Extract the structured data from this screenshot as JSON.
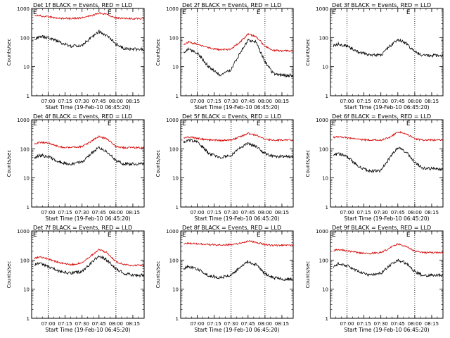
{
  "figure": {
    "background": "#ffffff",
    "event_color": "#000000",
    "lld_color": "#d40000",
    "ylabel": "Counts/sec",
    "xlabel": "Start Time (19-Feb-10 06:45:20)",
    "e_marker": "E",
    "y_ticks": [
      "1",
      "10",
      "100",
      "1000"
    ],
    "x_ticks": [
      "07:00",
      "07:15",
      "07:30",
      "07:45",
      "08:00",
      "08:15"
    ]
  },
  "chart_data": [
    {
      "type": "line",
      "title": "Det 1f BLACK = Events, RED = LLD",
      "yscale": "log",
      "ylim": [
        1,
        1000
      ],
      "xlim": [
        "06:45:20",
        "08:25"
      ],
      "lld_shown": true,
      "vlines": [
        "07:00",
        "08:00"
      ],
      "series": [
        {
          "name": "Events",
          "x": [
            "06:45",
            "06:52",
            "07:00",
            "07:10",
            "07:20",
            "07:30",
            "07:38",
            "07:45",
            "07:52",
            "08:00",
            "08:07",
            "08:15",
            "08:22"
          ],
          "values": [
            80,
            110,
            100,
            70,
            50,
            55,
            100,
            160,
            120,
            60,
            42,
            40,
            40
          ]
        },
        {
          "name": "LLD",
          "x": [
            "06:45",
            "06:52",
            "07:00",
            "07:10",
            "07:20",
            "07:30",
            "07:38",
            "07:45",
            "07:52",
            "08:00",
            "08:07",
            "08:15",
            "08:22"
          ],
          "values": [
            600,
            560,
            520,
            460,
            450,
            470,
            560,
            700,
            620,
            480,
            450,
            450,
            450
          ]
        }
      ]
    },
    {
      "type": "line",
      "title": "Det 2f BLACK = Events, RED = LLD",
      "yscale": "log",
      "ylim": [
        1,
        1000
      ],
      "xlim": [
        "06:45:20",
        "08:25"
      ],
      "lld_shown": true,
      "vlines": [
        "07:00",
        "08:00"
      ],
      "series": [
        {
          "name": "Events",
          "x": [
            "06:45",
            "06:52",
            "07:00",
            "07:10",
            "07:20",
            "07:30",
            "07:38",
            "07:45",
            "07:52",
            "08:00",
            "08:07",
            "08:15",
            "08:22"
          ],
          "values": [
            25,
            40,
            30,
            10,
            5,
            8,
            30,
            80,
            70,
            15,
            6,
            5,
            5
          ]
        },
        {
          "name": "LLD",
          "x": [
            "06:45",
            "06:52",
            "07:00",
            "07:10",
            "07:20",
            "07:30",
            "07:38",
            "07:45",
            "07:52",
            "08:00",
            "08:07",
            "08:15",
            "08:22"
          ],
          "values": [
            45,
            70,
            60,
            45,
            38,
            40,
            70,
            130,
            110,
            50,
            37,
            35,
            35
          ]
        }
      ]
    },
    {
      "type": "line",
      "title": "Det 3f BLACK = Events, RED = LLD",
      "yscale": "log",
      "ylim": [
        1,
        1000
      ],
      "xlim": [
        "06:45:20",
        "08:25"
      ],
      "lld_shown": false,
      "vlines": [
        "07:00",
        "08:00"
      ],
      "series": [
        {
          "name": "Events",
          "x": [
            "06:45",
            "06:52",
            "07:00",
            "07:10",
            "07:20",
            "07:30",
            "07:38",
            "07:45",
            "07:52",
            "08:00",
            "08:07",
            "08:15",
            "08:22"
          ],
          "values": [
            45,
            60,
            50,
            32,
            25,
            25,
            50,
            85,
            65,
            32,
            25,
            24,
            24
          ]
        }
      ]
    },
    {
      "type": "line",
      "title": "Det 4f BLACK = Events, RED = LLD",
      "yscale": "log",
      "ylim": [
        1,
        1000
      ],
      "xlim": [
        "06:45:20",
        "08:25"
      ],
      "lld_shown": true,
      "vlines": [
        "07:00",
        "08:00"
      ],
      "series": [
        {
          "name": "Events",
          "x": [
            "06:45",
            "06:52",
            "07:00",
            "07:10",
            "07:20",
            "07:30",
            "07:38",
            "07:45",
            "07:52",
            "08:00",
            "08:07",
            "08:15",
            "08:22"
          ],
          "values": [
            40,
            60,
            55,
            35,
            30,
            35,
            70,
            110,
            80,
            40,
            30,
            30,
            30
          ]
        },
        {
          "name": "LLD",
          "x": [
            "06:45",
            "06:52",
            "07:00",
            "07:10",
            "07:20",
            "07:30",
            "07:38",
            "07:45",
            "07:52",
            "08:00",
            "08:07",
            "08:15",
            "08:22"
          ],
          "values": [
            130,
            170,
            160,
            115,
            110,
            120,
            180,
            270,
            220,
            120,
            110,
            110,
            110
          ]
        }
      ]
    },
    {
      "type": "line",
      "title": "Det 5f BLACK = Events, RED = LLD",
      "yscale": "log",
      "ylim": [
        1,
        1000
      ],
      "xlim": [
        "06:45:20",
        "08:25"
      ],
      "lld_shown": true,
      "vlines": [
        "07:30",
        "08:00"
      ],
      "series": [
        {
          "name": "Events",
          "x": [
            "06:45",
            "06:52",
            "07:00",
            "07:10",
            "07:20",
            "07:30",
            "07:38",
            "07:45",
            "07:52",
            "08:00",
            "08:07",
            "08:15",
            "08:22"
          ],
          "values": [
            150,
            200,
            180,
            70,
            50,
            60,
            110,
            150,
            120,
            70,
            55,
            55,
            55
          ]
        },
        {
          "name": "LLD",
          "x": [
            "06:45",
            "06:52",
            "07:00",
            "07:10",
            "07:20",
            "07:30",
            "07:38",
            "07:45",
            "07:52",
            "08:00",
            "08:07",
            "08:15",
            "08:22"
          ],
          "values": [
            220,
            260,
            230,
            200,
            195,
            200,
            260,
            340,
            290,
            210,
            200,
            200,
            200
          ]
        }
      ]
    },
    {
      "type": "line",
      "title": "Det 6f BLACK = Events, RED = LLD",
      "yscale": "log",
      "ylim": [
        1,
        1000
      ],
      "xlim": [
        "06:45:20",
        "08:25"
      ],
      "lld_shown": true,
      "vlines": [
        "07:00",
        "08:00"
      ],
      "series": [
        {
          "name": "Events",
          "x": [
            "06:45",
            "06:52",
            "07:00",
            "07:10",
            "07:20",
            "07:30",
            "07:38",
            "07:45",
            "07:52",
            "08:00",
            "08:07",
            "08:15",
            "08:22"
          ],
          "values": [
            50,
            70,
            55,
            25,
            17,
            18,
            50,
            110,
            80,
            35,
            22,
            21,
            20
          ]
        },
        {
          "name": "LLD",
          "x": [
            "06:45",
            "06:52",
            "07:00",
            "07:10",
            "07:20",
            "07:30",
            "07:38",
            "07:45",
            "07:52",
            "08:00",
            "08:07",
            "08:15",
            "08:22"
          ],
          "values": [
            230,
            260,
            240,
            210,
            200,
            200,
            250,
            380,
            330,
            220,
            200,
            200,
            200
          ]
        }
      ]
    },
    {
      "type": "line",
      "title": "Det 7f BLACK = Events, RED = LLD",
      "yscale": "log",
      "ylim": [
        1,
        1000
      ],
      "xlim": [
        "06:45:20",
        "08:25"
      ],
      "lld_shown": true,
      "vlines": [
        "07:00",
        "08:00"
      ],
      "series": [
        {
          "name": "Events",
          "x": [
            "06:45",
            "06:52",
            "07:00",
            "07:10",
            "07:20",
            "07:30",
            "07:38",
            "07:45",
            "07:52",
            "08:00",
            "08:07",
            "08:15",
            "08:22"
          ],
          "values": [
            60,
            80,
            60,
            40,
            35,
            40,
            80,
            140,
            100,
            50,
            35,
            30,
            30
          ]
        },
        {
          "name": "LLD",
          "x": [
            "06:45",
            "06:52",
            "07:00",
            "07:10",
            "07:20",
            "07:30",
            "07:38",
            "07:45",
            "07:52",
            "08:00",
            "08:07",
            "08:15",
            "08:22"
          ],
          "values": [
            100,
            130,
            110,
            80,
            70,
            80,
            140,
            230,
            180,
            90,
            70,
            65,
            65
          ]
        }
      ]
    },
    {
      "type": "line",
      "title": "Det 8f BLACK = Events, RED = LLD",
      "yscale": "log",
      "ylim": [
        1,
        1000
      ],
      "xlim": [
        "06:45:20",
        "08:25"
      ],
      "lld_shown": true,
      "vlines": [
        "07:30",
        "08:00"
      ],
      "series": [
        {
          "name": "Events",
          "x": [
            "06:45",
            "06:52",
            "07:00",
            "07:10",
            "07:20",
            "07:30",
            "07:38",
            "07:45",
            "07:52",
            "08:00",
            "08:07",
            "08:15",
            "08:22"
          ],
          "values": [
            45,
            60,
            50,
            30,
            25,
            30,
            55,
            90,
            70,
            35,
            25,
            22,
            22
          ]
        },
        {
          "name": "LLD",
          "x": [
            "06:45",
            "06:52",
            "07:00",
            "07:10",
            "07:20",
            "07:30",
            "07:38",
            "07:45",
            "07:52",
            "08:00",
            "08:07",
            "08:15",
            "08:22"
          ],
          "values": [
            370,
            380,
            360,
            340,
            330,
            340,
            380,
            450,
            410,
            340,
            320,
            320,
            320
          ]
        }
      ]
    },
    {
      "type": "line",
      "title": "Det 9f BLACK = Events, RED = LLD",
      "yscale": "log",
      "ylim": [
        1,
        1000
      ],
      "xlim": [
        "06:45:20",
        "08:25"
      ],
      "lld_shown": true,
      "vlines": [
        "07:00",
        "08:00"
      ],
      "series": [
        {
          "name": "Events",
          "x": [
            "06:45",
            "06:52",
            "07:00",
            "07:10",
            "07:20",
            "07:30",
            "07:38",
            "07:45",
            "07:52",
            "08:00",
            "08:07",
            "08:15",
            "08:22"
          ],
          "values": [
            50,
            75,
            65,
            40,
            30,
            35,
            65,
            100,
            80,
            40,
            30,
            30,
            30
          ]
        },
        {
          "name": "LLD",
          "x": [
            "06:45",
            "06:52",
            "07:00",
            "07:10",
            "07:20",
            "07:30",
            "07:38",
            "07:45",
            "07:52",
            "08:00",
            "08:07",
            "08:15",
            "08:22"
          ],
          "values": [
            200,
            230,
            210,
            180,
            170,
            180,
            260,
            360,
            300,
            200,
            180,
            180,
            180
          ]
        }
      ]
    }
  ]
}
